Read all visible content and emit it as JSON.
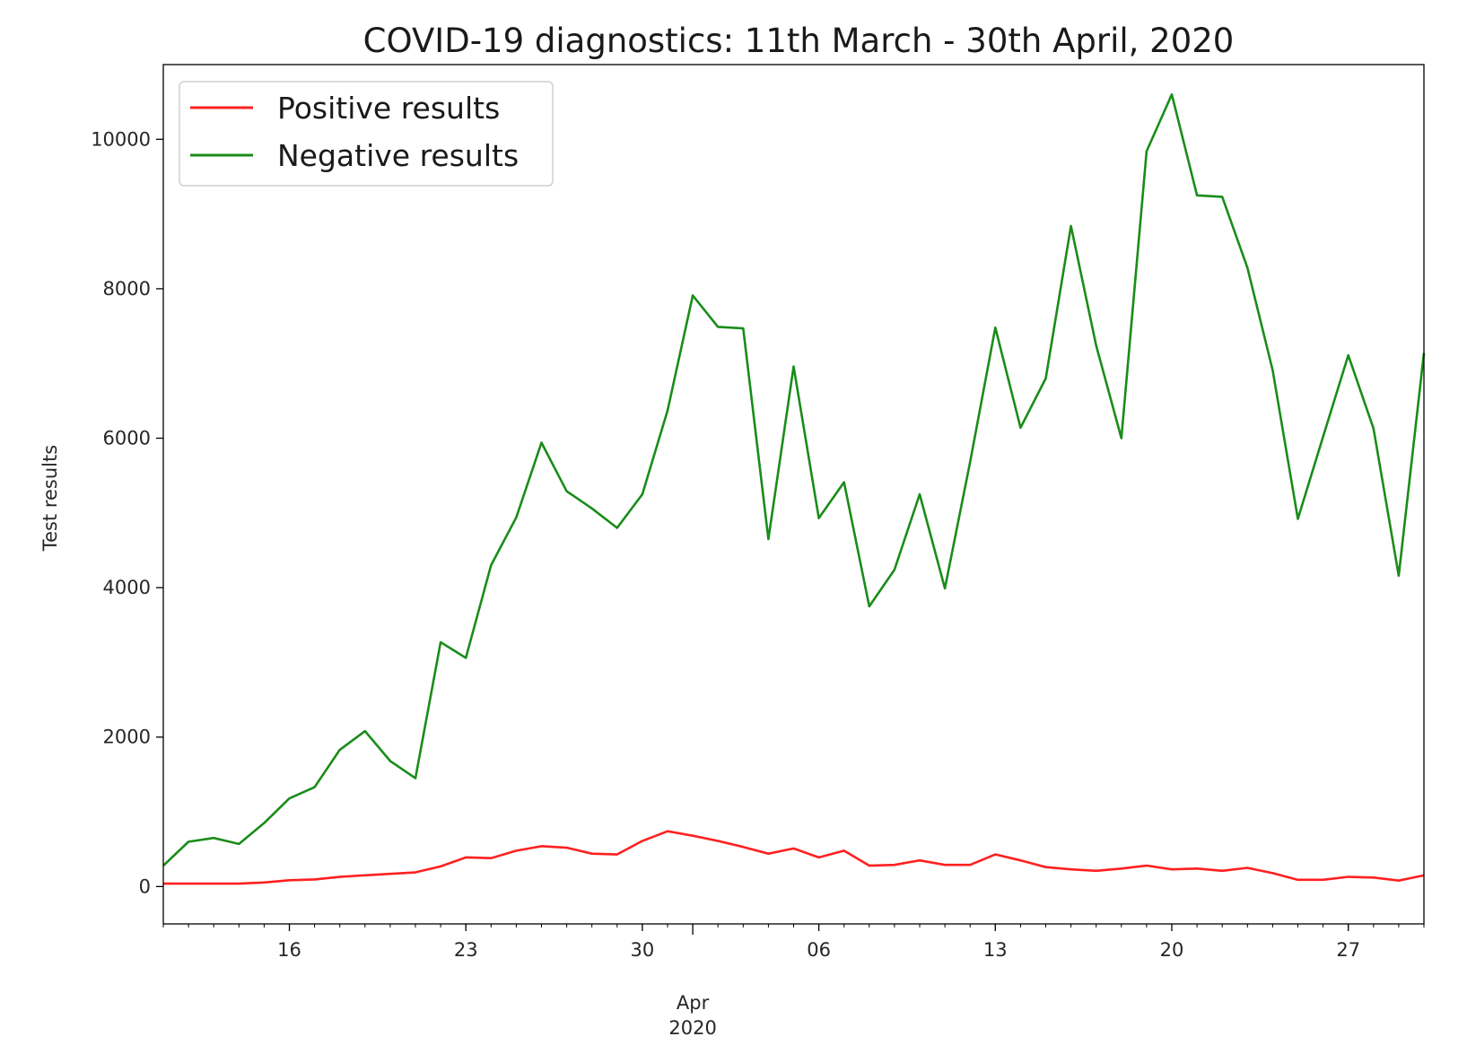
{
  "chart_data": {
    "type": "line",
    "title": "COVID-19 diagnostics: 11th March - 30th April, 2020",
    "xlabel": "",
    "ylabel": "Test results",
    "x_start": "2020-03-11",
    "x_end": "2020-04-30",
    "ylim": [
      -500,
      11000
    ],
    "grid": false,
    "legend": "upper-left",
    "y_ticks": [
      0,
      2000,
      4000,
      6000,
      8000,
      10000
    ],
    "x_ticks": [
      {
        "date": "2020-03-16",
        "label": "16"
      },
      {
        "date": "2020-03-23",
        "label": "23"
      },
      {
        "date": "2020-03-30",
        "label": "30"
      },
      {
        "date": "2020-04-06",
        "label": "06"
      },
      {
        "date": "2020-04-13",
        "label": "13"
      },
      {
        "date": "2020-04-20",
        "label": "20"
      },
      {
        "date": "2020-04-27",
        "label": "27"
      }
    ],
    "x_major_ticks": [
      {
        "date": "2020-04-01",
        "label_month": "Apr",
        "label_year": "2020"
      }
    ],
    "series": [
      {
        "name": "Positive results",
        "color": "#ff2020",
        "values": [
          40,
          40,
          40,
          40,
          55,
          85,
          95,
          130,
          150,
          170,
          190,
          270,
          390,
          380,
          480,
          540,
          520,
          440,
          430,
          610,
          740,
          680,
          610,
          530,
          440,
          510,
          390,
          480,
          280,
          290,
          350,
          290,
          290,
          430,
          350,
          260,
          230,
          210,
          240,
          280,
          230,
          240,
          210,
          250,
          180,
          90,
          90,
          130,
          120,
          80,
          150
        ]
      },
      {
        "name": "Negative results",
        "color": "#1a8c1a",
        "values": [
          280,
          600,
          650,
          570,
          850,
          1180,
          1330,
          1830,
          2080,
          1680,
          1450,
          3270,
          3060,
          4300,
          4940,
          5940,
          5290,
          5060,
          4800,
          5250,
          6370,
          7910,
          7490,
          7470,
          4650,
          6960,
          4930,
          5410,
          3750,
          4240,
          5250,
          3990,
          5680,
          7480,
          6140,
          6800,
          8840,
          7240,
          6000,
          9840,
          10600,
          9250,
          9230,
          8280,
          6910,
          4920,
          6020,
          7110,
          6130,
          4160,
          7140
        ]
      }
    ]
  }
}
